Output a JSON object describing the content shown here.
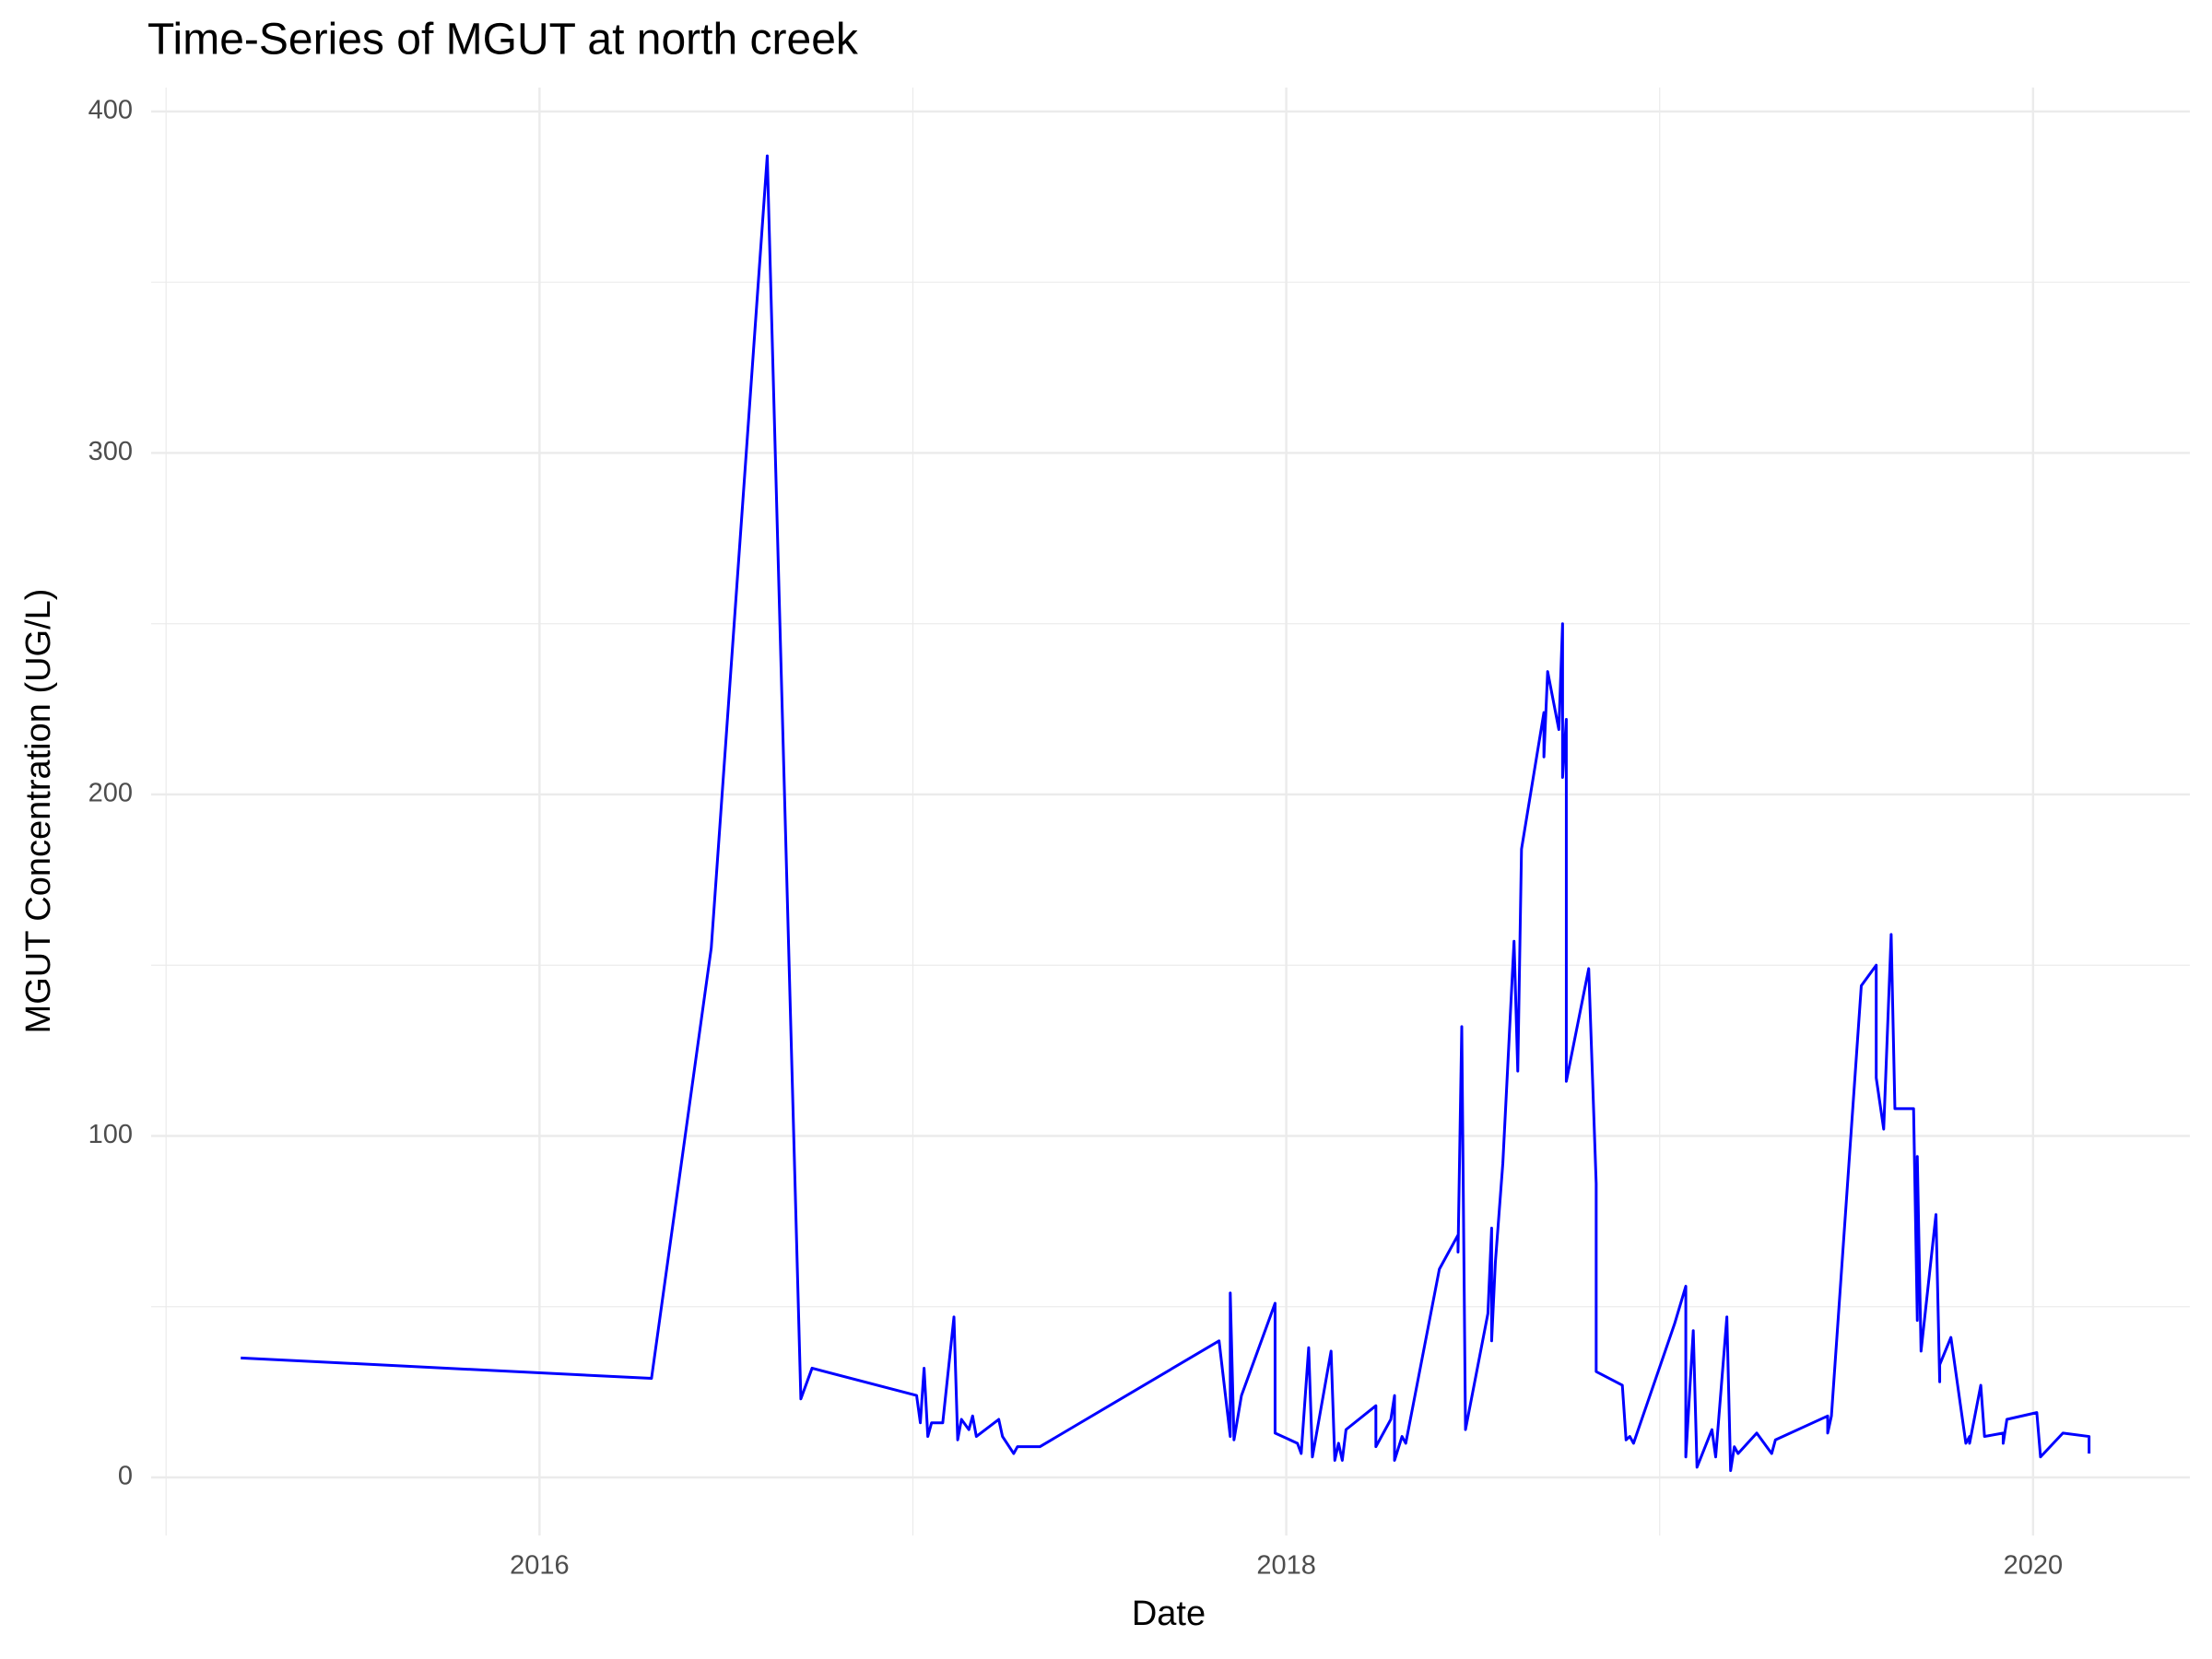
{
  "chart_data": {
    "type": "line",
    "title": "Time-Series of MGUT at north creek",
    "x_label": "Date",
    "y_label": "MGUT Concentration (UG/L)",
    "color": "#0000ff",
    "grid": true,
    "xlim": [
      2014.96,
      2020.42
    ],
    "ylim": [
      -17,
      407
    ],
    "xticks": [
      2016,
      2018,
      2020
    ],
    "yticks": [
      0,
      100,
      200,
      300,
      400
    ],
    "xminorticks": [
      2015,
      2017,
      2019
    ],
    "yminorticks": [
      50,
      150,
      250,
      350
    ],
    "x": [
      2015.2,
      2016.3,
      2016.46,
      2016.61,
      2016.7,
      2016.73,
      2017.01,
      2017.02,
      2017.03,
      2017.04,
      2017.05,
      2017.08,
      2017.11,
      2017.12,
      2017.13,
      2017.15,
      2017.16,
      2017.17,
      2017.23,
      2017.24,
      2017.27,
      2017.28,
      2017.34,
      2017.82,
      2017.85,
      2017.85,
      2017.86,
      2017.88,
      2017.97,
      2017.97,
      2018.03,
      2018.04,
      2018.06,
      2018.07,
      2018.12,
      2018.13,
      2018.14,
      2018.15,
      2018.16,
      2018.24,
      2018.24,
      2018.28,
      2018.29,
      2018.29,
      2018.31,
      2018.32,
      2018.41,
      2018.46,
      2018.46,
      2018.47,
      2018.48,
      2018.54,
      2018.55,
      2018.55,
      2018.56,
      2018.58,
      2018.61,
      2018.62,
      2018.63,
      2018.69,
      2018.69,
      2018.7,
      2018.73,
      2018.74,
      2018.74,
      2018.75,
      2018.75,
      2018.81,
      2018.83,
      2018.83,
      2018.9,
      2018.91,
      2018.92,
      2018.93,
      2019.04,
      2019.07,
      2019.07,
      2019.09,
      2019.1,
      2019.14,
      2019.15,
      2019.18,
      2019.19,
      2019.2,
      2019.21,
      2019.26,
      2019.3,
      2019.31,
      2019.45,
      2019.45,
      2019.46,
      2019.54,
      2019.58,
      2019.58,
      2019.6,
      2019.62,
      2019.63,
      2019.68,
      2019.69,
      2019.69,
      2019.7,
      2019.74,
      2019.75,
      2019.75,
      2019.78,
      2019.82,
      2019.83,
      2019.83,
      2019.86,
      2019.87,
      2019.92,
      2019.92,
      2019.93,
      2020.01,
      2020.02,
      2020.08,
      2020.15,
      2020.15
    ],
    "values": [
      35,
      29,
      155,
      387,
      23,
      32,
      24,
      16,
      32,
      12,
      16,
      16,
      47,
      11,
      17,
      14,
      18,
      12,
      17,
      12,
      7,
      9,
      9,
      40,
      12,
      54,
      11,
      24,
      51,
      13,
      10,
      7,
      38,
      6,
      37,
      5,
      10,
      5,
      14,
      21,
      9,
      17,
      24,
      5,
      12,
      10,
      61,
      71,
      66,
      132,
      14,
      48,
      73,
      40,
      63,
      92,
      157,
      119,
      184,
      224,
      211,
      236,
      219,
      250,
      205,
      222,
      116,
      149,
      86,
      31,
      27,
      11,
      12,
      10,
      45,
      56,
      6,
      43,
      3,
      14,
      6,
      47,
      2,
      9,
      7,
      13,
      7,
      11,
      18,
      13,
      18,
      144,
      150,
      117,
      102,
      159,
      108,
      108,
      46,
      94,
      37,
      77,
      28,
      33,
      41,
      10,
      12,
      10,
      27,
      12,
      13,
      10,
      17,
      19,
      6,
      13,
      12,
      7
    ]
  }
}
